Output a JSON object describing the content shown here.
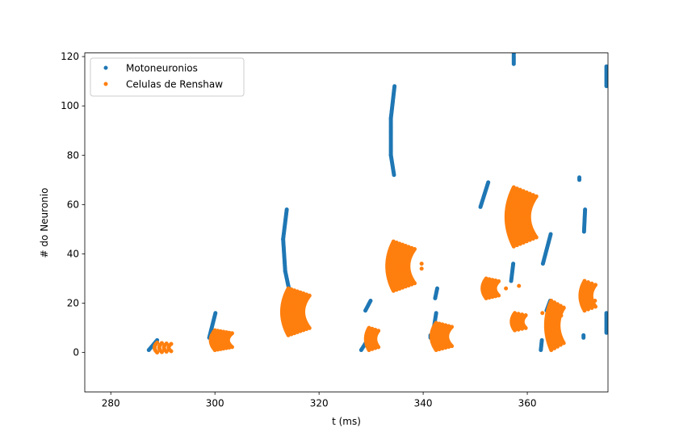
{
  "chart_data": {
    "type": "scatter",
    "title": "",
    "xlabel": "t (ms)",
    "ylabel": "# do Neuronio",
    "xlim": [
      275,
      375.5
    ],
    "ylim": [
      -16,
      121.5
    ],
    "xticks": [
      280,
      300,
      320,
      340,
      360
    ],
    "yticks": [
      0,
      20,
      40,
      60,
      80,
      100,
      120
    ],
    "legend_position": "top-left",
    "grid": false,
    "colors": {
      "motoneuronios": "#1f77b4",
      "renshaw": "#ff7f0e"
    },
    "series": [
      {
        "name": "Motoneuronios",
        "color": "#1f77b4",
        "segments": [
          {
            "t0": 287.3,
            "t1": 288.9,
            "n0": 1,
            "n1": 5
          },
          {
            "t0": 298.9,
            "t1": 300.1,
            "n0": 6,
            "n1": 16
          },
          {
            "t0": 314.2,
            "t1": 313.5,
            "n0": 26,
            "n1": 33
          },
          {
            "t0": 313.5,
            "t1": 313.1,
            "n0": 33,
            "n1": 46
          },
          {
            "t0": 313.1,
            "t1": 313.8,
            "n0": 46,
            "n1": 58
          },
          {
            "t0": 328.1,
            "t1": 329.3,
            "n0": 1,
            "n1": 5
          },
          {
            "t0": 328.9,
            "t1": 329.9,
            "n0": 17,
            "n1": 21
          },
          {
            "t0": 334.4,
            "t1": 333.8,
            "n0": 72,
            "n1": 80
          },
          {
            "t0": 333.8,
            "t1": 333.8,
            "n0": 80,
            "n1": 95
          },
          {
            "t0": 333.8,
            "t1": 334.5,
            "n0": 95,
            "n1": 108
          },
          {
            "t0": 341.4,
            "t1": 341.4,
            "n0": 6,
            "n1": 7
          },
          {
            "t0": 342.3,
            "t1": 342.7,
            "n0": 22,
            "n1": 26
          },
          {
            "t0": 341.9,
            "t1": 342.5,
            "n0": 8,
            "n1": 16
          },
          {
            "t0": 351.0,
            "t1": 352.5,
            "n0": 59,
            "n1": 69
          },
          {
            "t0": 357.4,
            "t1": 357.4,
            "n0": 117,
            "n1": 122
          },
          {
            "t0": 356.9,
            "t1": 357.3,
            "n0": 29,
            "n1": 36
          },
          {
            "t0": 363.0,
            "t1": 364.5,
            "n0": 36,
            "n1": 48
          },
          {
            "t0": 362.6,
            "t1": 362.8,
            "n0": 1,
            "n1": 5
          },
          {
            "t0": 363.7,
            "t1": 364.4,
            "n0": 17,
            "n1": 21
          },
          {
            "t0": 370.0,
            "t1": 370.0,
            "n0": 70,
            "n1": 71
          },
          {
            "t0": 370.9,
            "t1": 371.1,
            "n0": 49,
            "n1": 58
          },
          {
            "t0": 370.8,
            "t1": 370.8,
            "n0": 6,
            "n1": 7
          },
          {
            "t0": 375.2,
            "t1": 375.2,
            "n0": 108,
            "n1": 116
          },
          {
            "t0": 375.2,
            "t1": 375.2,
            "n0": 8,
            "n1": 16
          }
        ]
      },
      {
        "name": "Celulas de Renshaw",
        "color": "#ff7f0e",
        "clusters": [
          {
            "t_start": 288.9,
            "cols": 4,
            "spacing": 0.9,
            "n0": 0,
            "n1": 4,
            "bow": 0.5
          },
          {
            "t_start": 300.0,
            "cols": 7,
            "spacing": 0.55,
            "n0": 1,
            "n1": 9,
            "bow": 0.8
          },
          {
            "t_start": 314.1,
            "cols": 8,
            "spacing": 0.58,
            "n0": 7,
            "n1": 26,
            "bow": 1.2
          },
          {
            "t_start": 329.6,
            "cols": 4,
            "spacing": 0.6,
            "n0": 1,
            "n1": 10,
            "bow": 0.6
          },
          {
            "t_start": 334.3,
            "cols": 8,
            "spacing": 0.58,
            "n0": 25,
            "n1": 45,
            "bow": 1.2
          },
          {
            "t_start": 342.5,
            "cols": 6,
            "spacing": 0.6,
            "n0": 1,
            "n1": 12,
            "bow": 0.9
          },
          {
            "t_start": 352.1,
            "cols": 5,
            "spacing": 0.6,
            "n0": 22,
            "n1": 30,
            "bow": 0.7
          },
          {
            "t_start": 357.4,
            "cols": 8,
            "spacing": 0.62,
            "n0": 43,
            "n1": 67,
            "bow": 1.4
          },
          {
            "t_start": 357.6,
            "cols": 4,
            "spacing": 0.7,
            "n0": 9,
            "n1": 16,
            "bow": 0.6
          },
          {
            "t_start": 364.6,
            "cols": 5,
            "spacing": 0.6,
            "n0": 1,
            "n1": 21,
            "bow": 1.0
          },
          {
            "t_start": 371.0,
            "cols": 4,
            "spacing": 0.7,
            "n0": 17,
            "n1": 29,
            "bow": 0.8
          }
        ],
        "extra_points": [
          [
            339.7,
            34
          ],
          [
            339.7,
            36
          ],
          [
            358.4,
            27
          ],
          [
            366.5,
            15
          ],
          [
            367.0,
            18
          ],
          [
            362.9,
            16
          ],
          [
            355.9,
            26
          ],
          [
            373.0,
            21
          ]
        ]
      }
    ]
  }
}
